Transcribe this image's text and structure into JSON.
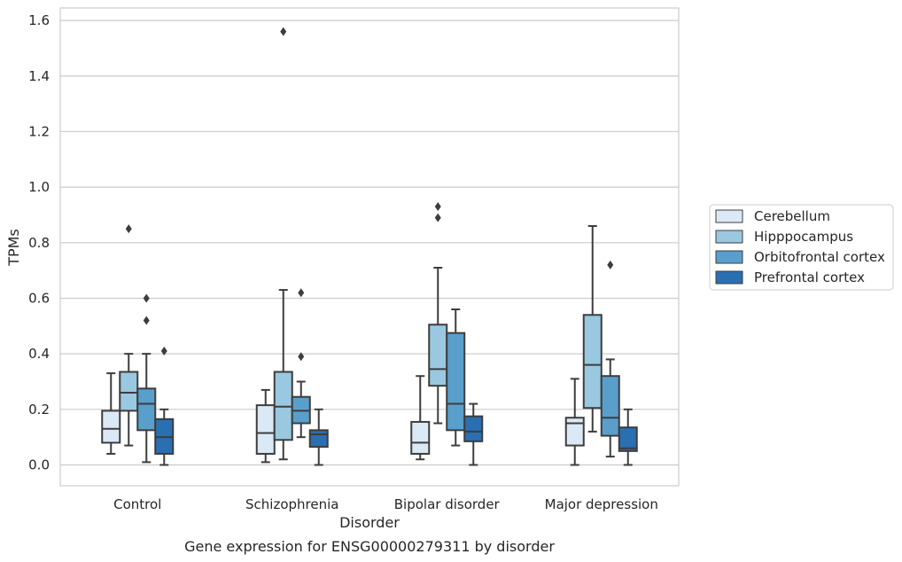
{
  "chart_data": {
    "type": "boxplot",
    "xlabel": "Disorder",
    "ylabel": "TPMs",
    "caption": "Gene expression for ENSG00000279311 by disorder",
    "ylim": [
      -0.075,
      1.645
    ],
    "yticks": [
      "0.0",
      "0.2",
      "0.4",
      "0.6",
      "0.8",
      "1.0",
      "1.2",
      "1.4",
      "1.6"
    ],
    "ytick_values": [
      0,
      0.2,
      0.4,
      0.6,
      0.8,
      1.0,
      1.2,
      1.4,
      1.6
    ],
    "grid": true,
    "legend_position": "right",
    "categories": [
      "Control",
      "Schizophrenia",
      "Bipolar disorder",
      "Major depression"
    ],
    "series": [
      {
        "name": "Cerebellum",
        "color": "#dbe9f6",
        "boxes": [
          {
            "whislo": 0.04,
            "q1": 0.08,
            "med": 0.13,
            "q3": 0.195,
            "whishi": 0.33,
            "fliers": []
          },
          {
            "whislo": 0.01,
            "q1": 0.04,
            "med": 0.115,
            "q3": 0.215,
            "whishi": 0.27,
            "fliers": []
          },
          {
            "whislo": 0.02,
            "q1": 0.04,
            "med": 0.08,
            "q3": 0.155,
            "whishi": 0.32,
            "fliers": []
          },
          {
            "whislo": 0.0,
            "q1": 0.07,
            "med": 0.15,
            "q3": 0.17,
            "whishi": 0.31,
            "fliers": []
          }
        ]
      },
      {
        "name": "Hipppocampus",
        "color": "#9ac8e0",
        "boxes": [
          {
            "whislo": 0.07,
            "q1": 0.195,
            "med": 0.26,
            "q3": 0.335,
            "whishi": 0.4,
            "fliers": [
              0.85
            ]
          },
          {
            "whislo": 0.02,
            "q1": 0.09,
            "med": 0.21,
            "q3": 0.335,
            "whishi": 0.63,
            "fliers": [
              1.56
            ]
          },
          {
            "whislo": 0.15,
            "q1": 0.285,
            "med": 0.345,
            "q3": 0.505,
            "whishi": 0.71,
            "fliers": [
              0.89,
              0.93
            ]
          },
          {
            "whislo": 0.12,
            "q1": 0.205,
            "med": 0.36,
            "q3": 0.54,
            "whishi": 0.86,
            "fliers": []
          }
        ]
      },
      {
        "name": "Orbitofrontal cortex",
        "color": "#5a9fcc",
        "boxes": [
          {
            "whislo": 0.01,
            "q1": 0.125,
            "med": 0.22,
            "q3": 0.275,
            "whishi": 0.4,
            "fliers": [
              0.52,
              0.6
            ]
          },
          {
            "whislo": 0.1,
            "q1": 0.15,
            "med": 0.195,
            "q3": 0.245,
            "whishi": 0.3,
            "fliers": [
              0.39,
              0.62
            ]
          },
          {
            "whislo": 0.07,
            "q1": 0.125,
            "med": 0.22,
            "q3": 0.475,
            "whishi": 0.56,
            "fliers": []
          },
          {
            "whislo": 0.03,
            "q1": 0.105,
            "med": 0.17,
            "q3": 0.32,
            "whishi": 0.38,
            "fliers": [
              0.72
            ]
          }
        ]
      },
      {
        "name": "Prefrontal cortex",
        "color": "#2a6fb1",
        "boxes": [
          {
            "whislo": 0.0,
            "q1": 0.04,
            "med": 0.1,
            "q3": 0.165,
            "whishi": 0.2,
            "fliers": [
              0.41
            ]
          },
          {
            "whislo": 0.0,
            "q1": 0.065,
            "med": 0.11,
            "q3": 0.125,
            "whishi": 0.2,
            "fliers": []
          },
          {
            "whislo": 0.0,
            "q1": 0.085,
            "med": 0.12,
            "q3": 0.175,
            "whishi": 0.22,
            "fliers": []
          },
          {
            "whislo": 0.0,
            "q1": 0.05,
            "med": 0.06,
            "q3": 0.135,
            "whishi": 0.2,
            "fliers": []
          }
        ]
      }
    ]
  }
}
